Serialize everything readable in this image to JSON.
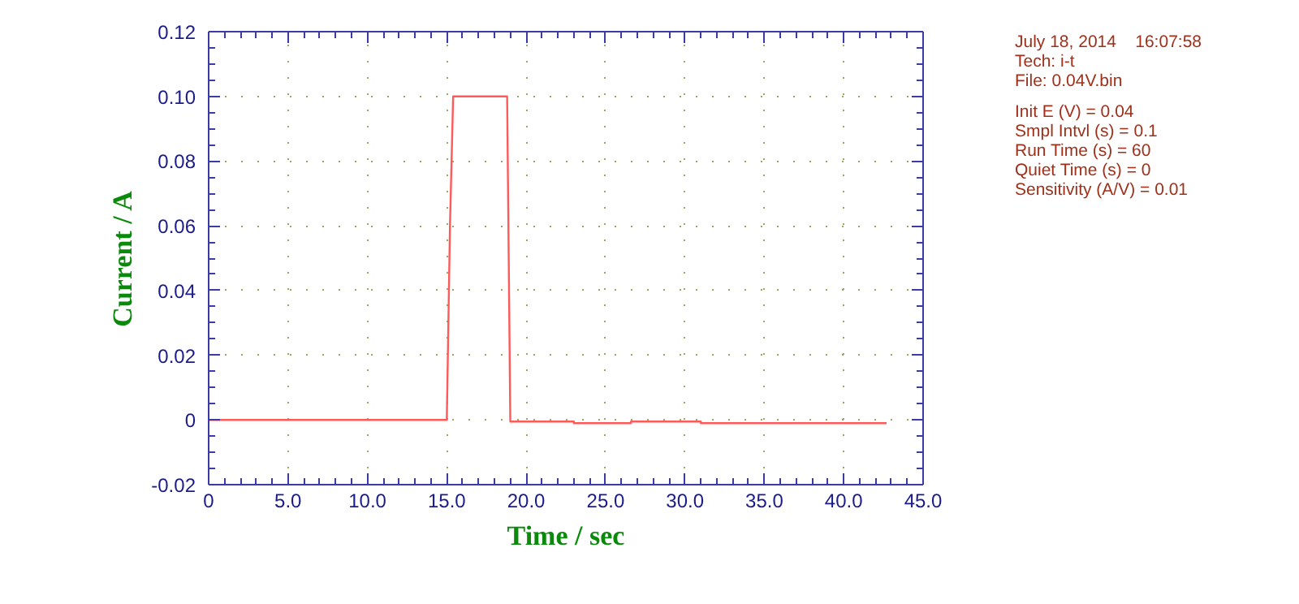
{
  "chart_data": {
    "type": "line",
    "xlabel": "Time / sec",
    "ylabel": "Current / A",
    "series": [
      {
        "color": "#ff5a5a",
        "x": [
          0,
          15.0,
          15.2,
          15.4,
          18.8,
          18.9,
          19.0,
          23.0,
          23.0,
          26.6,
          26.6,
          31.0,
          31.0,
          42.7
        ],
        "values": [
          0,
          0,
          0.06,
          0.1,
          0.1,
          0.05,
          -0.0005,
          -0.0005,
          -0.001,
          -0.001,
          -0.0005,
          -0.0005,
          -0.001,
          -0.001
        ]
      }
    ],
    "xlim": [
      0,
      45
    ],
    "xticks": [
      {
        "value": 0,
        "label": "0"
      },
      {
        "value": 5,
        "label": "5.0"
      },
      {
        "value": 10,
        "label": "10.0"
      },
      {
        "value": 15,
        "label": "15.0"
      },
      {
        "value": 20,
        "label": "20.0"
      },
      {
        "value": 25,
        "label": "25.0"
      },
      {
        "value": 30,
        "label": "30.0"
      },
      {
        "value": 35,
        "label": "35.0"
      },
      {
        "value": 40,
        "label": "40.0"
      },
      {
        "value": 45,
        "label": "45.0"
      }
    ],
    "ylim": [
      -0.02,
      0.12
    ],
    "yticks": [
      -0.02,
      0,
      0.02,
      0.04,
      0.06,
      0.08,
      {
        "value": 0.1,
        "label": "0.10"
      },
      0.12
    ],
    "grid": true,
    "marker": "none",
    "line_style": "solid",
    "annotations": [
      "July 18, 2014    16:07:58",
      "Tech: i-t",
      "File: 0.04V.bin",
      "Init E (V) = 0.04",
      "Smpl Intvl (s) = 0.1",
      "Run Time (s) = 60",
      "Quiet Time (s) = 0",
      "Sensitivity (A/V) = 0.01"
    ]
  }
}
